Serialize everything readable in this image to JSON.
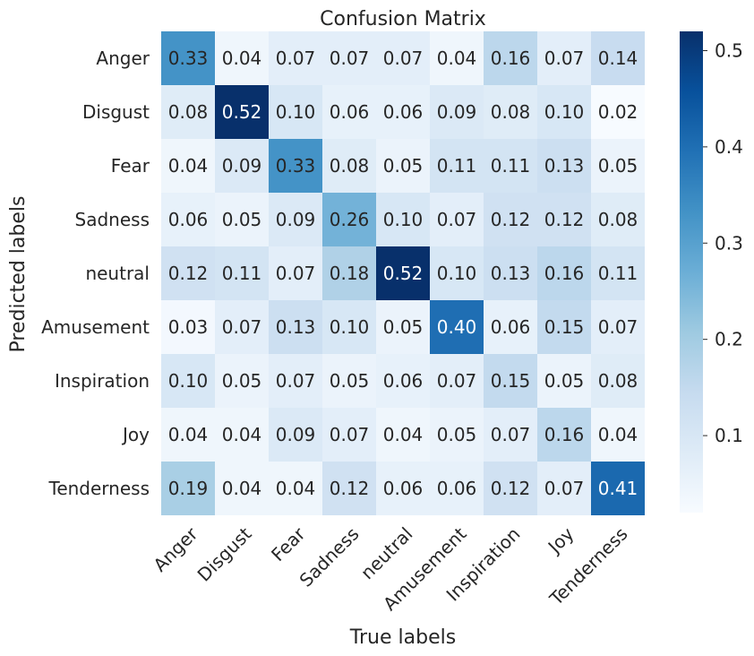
{
  "chart_data": {
    "type": "heatmap",
    "title": "Confusion Matrix",
    "xlabel": "True labels",
    "ylabel": "Predicted labels",
    "x_categories": [
      "Anger",
      "Disgust",
      "Fear",
      "Sadness",
      "neutral",
      "Amusement",
      "Inspiration",
      "Joy",
      "Tenderness"
    ],
    "y_categories": [
      "Anger",
      "Disgust",
      "Fear",
      "Sadness",
      "neutral",
      "Amusement",
      "Inspiration",
      "Joy",
      "Tenderness"
    ],
    "values": [
      [
        0.33,
        0.04,
        0.07,
        0.07,
        0.07,
        0.04,
        0.16,
        0.07,
        0.14
      ],
      [
        0.08,
        0.52,
        0.1,
        0.06,
        0.06,
        0.09,
        0.08,
        0.1,
        0.02
      ],
      [
        0.04,
        0.09,
        0.33,
        0.08,
        0.05,
        0.11,
        0.11,
        0.13,
        0.05
      ],
      [
        0.06,
        0.05,
        0.09,
        0.26,
        0.1,
        0.07,
        0.12,
        0.12,
        0.08
      ],
      [
        0.12,
        0.11,
        0.07,
        0.18,
        0.52,
        0.1,
        0.13,
        0.16,
        0.11
      ],
      [
        0.03,
        0.07,
        0.13,
        0.1,
        0.05,
        0.4,
        0.06,
        0.15,
        0.07
      ],
      [
        0.1,
        0.05,
        0.07,
        0.05,
        0.06,
        0.07,
        0.15,
        0.05,
        0.08
      ],
      [
        0.04,
        0.04,
        0.09,
        0.07,
        0.04,
        0.05,
        0.07,
        0.16,
        0.04
      ],
      [
        0.19,
        0.04,
        0.04,
        0.12,
        0.06,
        0.06,
        0.12,
        0.07,
        0.41
      ]
    ],
    "colormap": "Blues",
    "colorbar": {
      "range": [
        0.02,
        0.52
      ],
      "ticks": [
        0.1,
        0.2,
        0.3,
        0.4,
        0.5
      ],
      "tick_labels": [
        "0.1",
        "0.2",
        "0.3",
        "0.4",
        "0.5"
      ]
    },
    "annotations": true,
    "x_tick_rotation": 45
  }
}
